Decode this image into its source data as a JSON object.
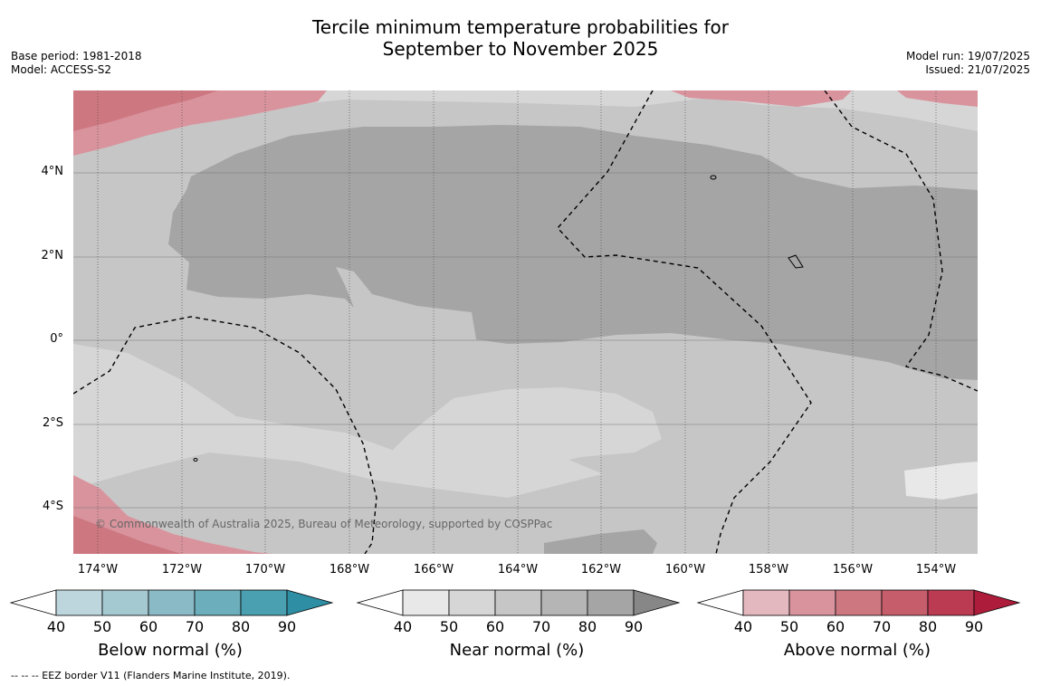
{
  "title_line1": "Tercile minimum temperature probabilities for",
  "title_line2": "September to November 2025",
  "base_period": "Base period: 1981-2018",
  "model": "Model: ACCESS-S2",
  "model_run": "Model run: 19/07/2025",
  "issued": "Issued: 21/07/2025",
  "copyright": "© Commonwealth of Australia 2025, Bureau of Meteorology, supported by COSPPac",
  "lat_labels": [
    "4°N",
    "2°N",
    "0°",
    "2°S",
    "4°S"
  ],
  "lon_labels": [
    "174°W",
    "172°W",
    "170°W",
    "168°W",
    "166°W",
    "164°W",
    "162°W",
    "160°W",
    "158°W",
    "156°W",
    "154°W"
  ],
  "colorbars": [
    {
      "title": "Below normal (%)",
      "ticks": [
        "40",
        "50",
        "60",
        "70",
        "80",
        "90"
      ],
      "colors": [
        "#bdd5dd",
        "#a5c9d1",
        "#8bbac7",
        "#6caebb",
        "#4a9fb0",
        "#2e8ea3"
      ]
    },
    {
      "title": "Near normal (%)",
      "ticks": [
        "40",
        "50",
        "60",
        "70",
        "80",
        "90"
      ],
      "colors": [
        "#e8e8e8",
        "#d6d6d6",
        "#c6c6c6",
        "#b5b5b5",
        "#a5a5a5",
        "#878787"
      ]
    },
    {
      "title": "Above normal (%)",
      "ticks": [
        "40",
        "50",
        "60",
        "70",
        "80",
        "90"
      ],
      "colors": [
        "#e4b8bf",
        "#d9939d",
        "#cd7881",
        "#c55d6b",
        "#bb3b53",
        "#ad1c3b"
      ]
    }
  ],
  "footnote": "--  --  -- EEZ border V11 (Flanders Marine Institute, 2019)."
}
